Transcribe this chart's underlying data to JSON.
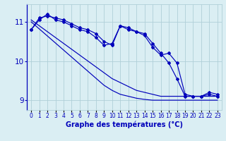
{
  "title": "Graphe des températures (°C)",
  "x_labels": [
    "0",
    "1",
    "2",
    "3",
    "4",
    "5",
    "6",
    "7",
    "8",
    "9",
    "10",
    "11",
    "12",
    "13",
    "14",
    "15",
    "16",
    "17",
    "18",
    "19",
    "20",
    "21",
    "22",
    "23"
  ],
  "x_values": [
    0,
    1,
    2,
    3,
    4,
    5,
    6,
    7,
    8,
    9,
    10,
    11,
    12,
    13,
    14,
    15,
    16,
    17,
    18,
    19,
    20,
    21,
    22,
    23
  ],
  "line_marker1": [
    10.8,
    11.1,
    11.15,
    11.1,
    11.05,
    10.95,
    10.85,
    10.8,
    10.7,
    10.5,
    10.4,
    10.9,
    10.85,
    10.75,
    10.7,
    10.45,
    10.2,
    9.95,
    9.55,
    9.1,
    9.1,
    9.1,
    9.15,
    9.1
  ],
  "line_marker2": [
    10.8,
    11.05,
    11.2,
    11.05,
    11.0,
    10.9,
    10.8,
    10.75,
    10.6,
    10.4,
    10.45,
    10.9,
    10.8,
    10.75,
    10.65,
    10.35,
    10.15,
    10.2,
    9.95,
    9.15,
    9.1,
    9.1,
    9.2,
    9.15
  ],
  "line_trend1": [
    11.05,
    10.9,
    10.75,
    10.6,
    10.45,
    10.3,
    10.15,
    10.0,
    9.85,
    9.7,
    9.55,
    9.45,
    9.35,
    9.25,
    9.2,
    9.15,
    9.1,
    9.1,
    9.1,
    9.1,
    9.1,
    9.1,
    9.1,
    9.1
  ],
  "line_trend2": [
    11.0,
    10.82,
    10.64,
    10.46,
    10.28,
    10.1,
    9.92,
    9.74,
    9.56,
    9.38,
    9.25,
    9.15,
    9.1,
    9.05,
    9.02,
    9.0,
    9.0,
    9.0,
    9.0,
    9.0,
    9.0,
    9.0,
    9.0,
    9.0
  ],
  "line_color": "#0000bb",
  "bg_color": "#daeef3",
  "grid_color": "#b0cfd8",
  "ylim": [
    8.75,
    11.45
  ],
  "yticks": [
    9,
    10,
    11
  ],
  "xlim": [
    -0.5,
    23.5
  ]
}
